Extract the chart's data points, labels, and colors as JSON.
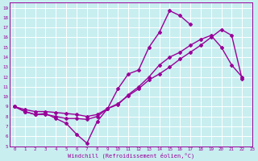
{
  "background_color": "#c8eef0",
  "grid_color": "#ffffff",
  "line_color": "#990099",
  "marker_style": "D",
  "marker_size": 2.0,
  "line_width": 1.0,
  "xlabel": "Windchill (Refroidissement éolien,°C)",
  "xlim": [
    -0.5,
    23
  ],
  "ylim": [
    5,
    19.5
  ],
  "xticks": [
    0,
    1,
    2,
    3,
    4,
    5,
    6,
    7,
    8,
    9,
    10,
    11,
    12,
    13,
    14,
    15,
    16,
    17,
    18,
    19,
    20,
    21,
    22,
    23
  ],
  "yticks": [
    5,
    6,
    7,
    8,
    9,
    10,
    11,
    12,
    13,
    14,
    15,
    16,
    17,
    18,
    19
  ],
  "series": [
    [
      9.0,
      8.5,
      8.2,
      8.3,
      7.8,
      7.3,
      6.2,
      5.3,
      7.5,
      8.8,
      10.8,
      12.3,
      12.7,
      15.0,
      16.5,
      18.7,
      18.2,
      17.3,
      null,
      null,
      null,
      null,
      null
    ],
    [
      9.0,
      8.5,
      8.2,
      8.2,
      8.0,
      7.8,
      7.8,
      7.7,
      8.0,
      8.8,
      9.2,
      10.2,
      11.0,
      12.0,
      13.2,
      14.0,
      14.5,
      15.2,
      15.8,
      16.2,
      15.0,
      13.2,
      12.0
    ],
    [
      9.0,
      8.7,
      8.5,
      8.5,
      8.4,
      8.3,
      8.2,
      8.0,
      8.2,
      8.8,
      9.3,
      10.1,
      10.8,
      11.7,
      12.3,
      13.0,
      13.8,
      14.5,
      15.2,
      16.0,
      16.8,
      16.2,
      11.8
    ]
  ]
}
